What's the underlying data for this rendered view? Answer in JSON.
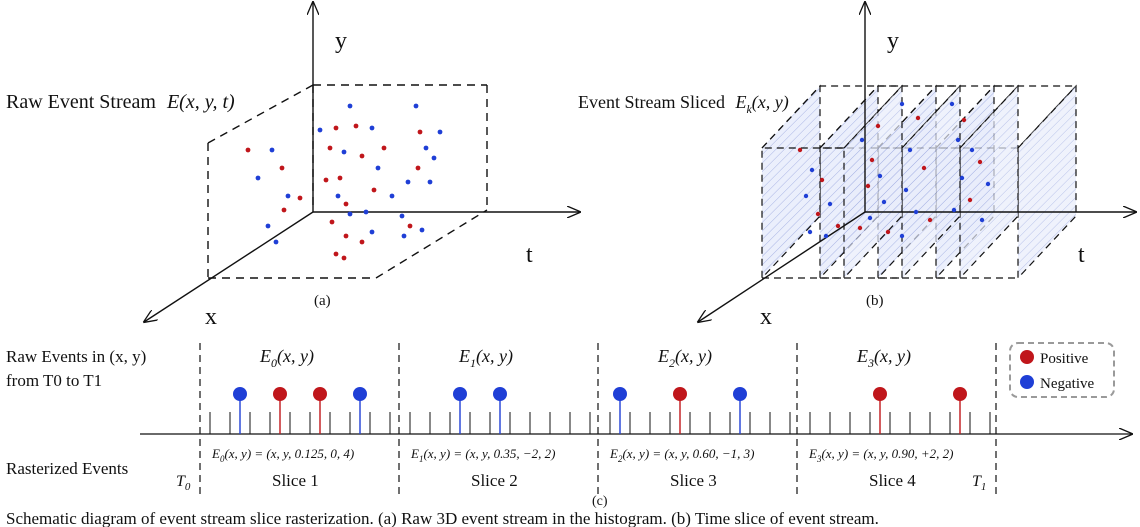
{
  "panel_a": {
    "title_text": "Raw Event Stream",
    "title_formula": "E(x, y, t)",
    "axis_y": "y",
    "axis_x": "x",
    "axis_t": "t",
    "label": "(a)"
  },
  "panel_b": {
    "title_text": "Event Stream Sliced",
    "title_formula_main": "E",
    "title_formula_sub": "k",
    "title_formula_args": "(x, y)",
    "axis_y": "y",
    "axis_x": "x",
    "axis_t": "t",
    "label": "(b)"
  },
  "panel_c": {
    "label": "(c)",
    "left_label_line1": "Raw Events in (x, y)",
    "left_label_line2": "from T0 to T1",
    "rasterized_label": "Rasterized Events",
    "t0_main": "T",
    "t0_sub": "0",
    "t1_main": "T",
    "t1_sub": "1",
    "slices": [
      {
        "name": "Slice 1",
        "raw_main": "E",
        "raw_sub": "0",
        "raw_args": "(x, y)",
        "rast_sub": "0",
        "rast_formula": "(x, y) = (x, y, 0.125, 0, 4)"
      },
      {
        "name": "Slice 2",
        "raw_main": "E",
        "raw_sub": "1",
        "raw_args": "(x, y)",
        "rast_sub": "1",
        "rast_formula": "(x, y) = (x, y, 0.35, −2, 2)"
      },
      {
        "name": "Slice 3",
        "raw_main": "E",
        "raw_sub": "2",
        "raw_args": "(x, y)",
        "rast_sub": "2",
        "rast_formula": "(x, y) = (x, y, 0.60, −1, 3)"
      },
      {
        "name": "Slice 4",
        "raw_main": "E",
        "raw_sub": "3",
        "raw_args": "(x, y)",
        "rast_sub": "3",
        "rast_formula": "(x, y) = (x, y, 0.90, +2, 2)"
      }
    ],
    "legend": {
      "positive_label": "Positive",
      "negative_label": "Negative",
      "positive_color": "#c0161b",
      "negative_color": "#1f3fd6"
    }
  },
  "caption": "Schematic diagram of event stream slice rasterization. (a) Raw 3D event stream in the histogram. (b) Time slice of event stream."
}
